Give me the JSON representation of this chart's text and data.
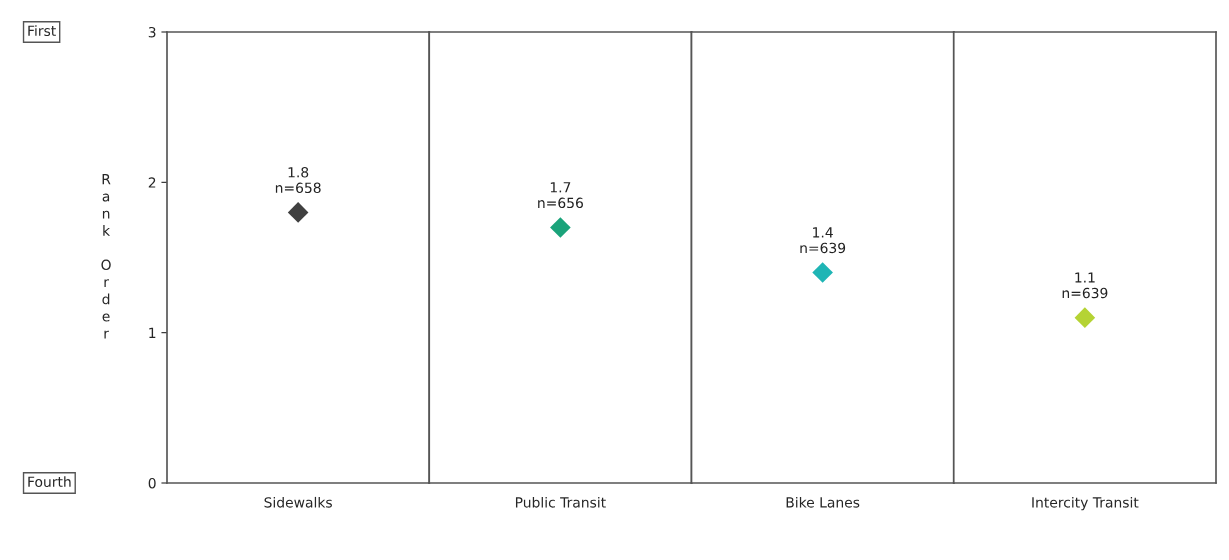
{
  "chart_data": [
    {
      "type": "scatter",
      "categories": [
        "Sidewalks"
      ],
      "values": [
        1.8
      ],
      "colors": [
        "#404040"
      ],
      "value_labels": [
        "1.8\nn=658"
      ],
      "ylim": [
        0,
        3
      ],
      "yticks": [
        0,
        1,
        2,
        3
      ],
      "ylabel": "Rank Order",
      "annotations": [
        "First",
        "Fourth"
      ],
      "marker": "diamond"
    },
    {
      "type": "scatter",
      "categories": [
        "Public Transit"
      ],
      "values": [
        1.7
      ],
      "colors": [
        "#1aa37a"
      ],
      "value_labels": [
        "1.7\nn=656"
      ],
      "ylim": [
        0,
        3
      ],
      "yticks": [
        0,
        1,
        2,
        3
      ],
      "tick_labels": "x",
      "marker": "diamond"
    },
    {
      "type": "scatter",
      "categories": [
        "Bike Lanes"
      ],
      "values": [
        1.4
      ],
      "colors": [
        "#1fb5b5"
      ],
      "value_labels": [
        "1.4\nn=639"
      ],
      "ylim": [
        0,
        3
      ],
      "yticks": [
        0,
        1,
        2,
        3
      ],
      "tick_labels": "x",
      "marker": "diamond"
    },
    {
      "type": "scatter",
      "categories": [
        "Intercity Transit"
      ],
      "values": [
        1.1
      ],
      "colors": [
        "#b5d334"
      ],
      "value_labels": [
        "1.1\nn=639"
      ],
      "ylim": [
        0,
        3
      ],
      "yticks": [
        0,
        1,
        2,
        3
      ],
      "tick_labels": "x",
      "marker": "diamond"
    }
  ]
}
